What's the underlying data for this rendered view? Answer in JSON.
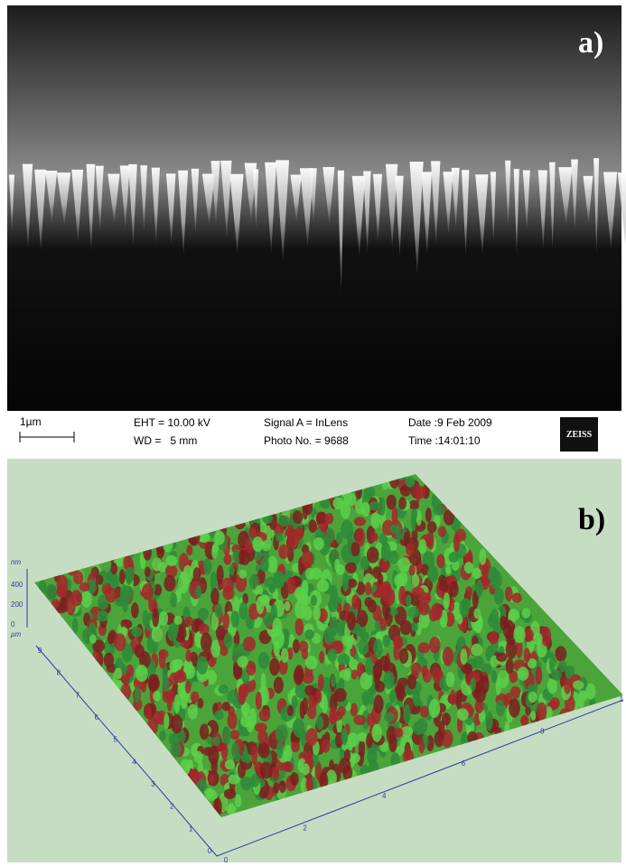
{
  "panel_a": {
    "label": "a)",
    "scale_bar": "1µm",
    "info": [
      [
        "EHT = 10.00 kV",
        "WD =   5 mm"
      ],
      [
        "Signal A = InLens",
        "Photo No. = 9688"
      ],
      [
        "Date :9 Feb 2009",
        "Time :14:01:10"
      ]
    ],
    "logo": "ZEISS"
  },
  "panel_b": {
    "label": "b)",
    "z_unit": "nm",
    "z_ticks": [
      "400",
      "200",
      "0"
    ],
    "xy_unit": "µm",
    "y_ticks": [
      "0",
      "1",
      "2",
      "3",
      "4",
      "5",
      "6",
      "7",
      "8",
      "9"
    ],
    "x_ticks": [
      "0",
      "2",
      "4",
      "6",
      "8",
      "1"
    ]
  }
}
